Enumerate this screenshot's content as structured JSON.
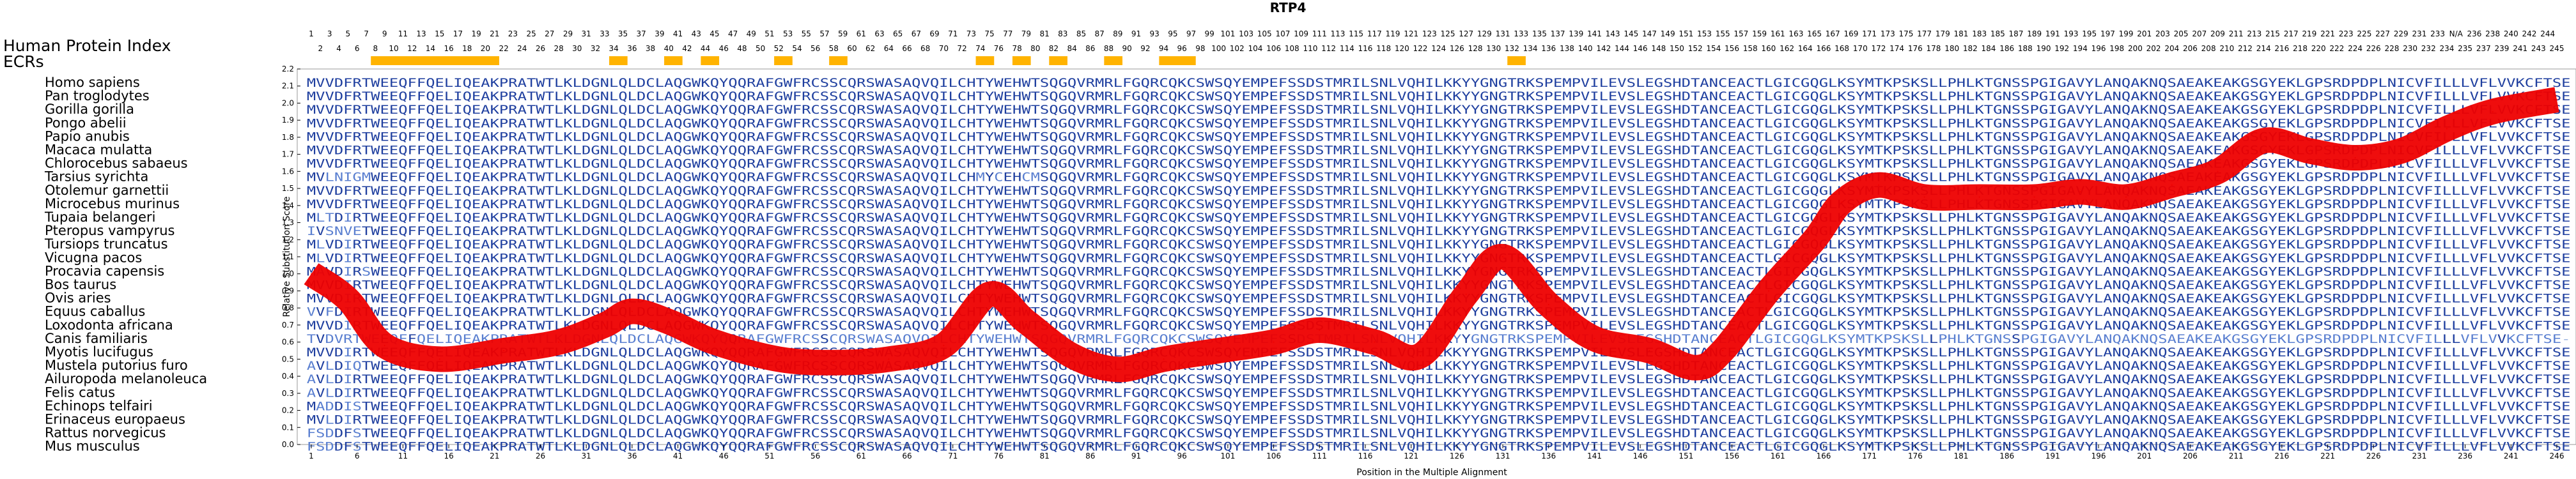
{
  "chart_data": {
    "type": "line",
    "title": "RTP4",
    "xlabel": "Position in the Multiple Alignment",
    "ylabel": "Relative Substitution Score",
    "ylim": [
      0.0,
      2.2
    ],
    "yticks": [
      "0.0",
      "0.1",
      "0.2",
      "0.3",
      "0.4",
      "0.5",
      "0.6",
      "0.7",
      "0.8",
      "0.9",
      "1.0",
      "1.1",
      "1.2",
      "1.3",
      "1.4",
      "1.5",
      "1.6",
      "1.7",
      "1.8",
      "1.9",
      "2.0",
      "2.1",
      "2.2"
    ],
    "xlim": [
      1,
      246
    ],
    "xticks": [
      "1",
      "6",
      "11",
      "16",
      "21",
      "26",
      "31",
      "36",
      "41",
      "46",
      "51",
      "56",
      "61",
      "66",
      "71",
      "76",
      "81",
      "86",
      "91",
      "96",
      "101",
      "106",
      "111",
      "116",
      "121",
      "126",
      "131",
      "136",
      "141",
      "146",
      "151",
      "156",
      "161",
      "166",
      "171",
      "176",
      "181",
      "186",
      "191",
      "196",
      "201",
      "206",
      "211",
      "216",
      "221",
      "226",
      "231",
      "236",
      "241",
      "246"
    ],
    "human_index_row1": [
      "1",
      "3",
      "5",
      "7",
      "9",
      "11",
      "13",
      "15",
      "17",
      "19",
      "21",
      "23",
      "25",
      "27",
      "29",
      "31",
      "33",
      "35",
      "37",
      "39",
      "41",
      "43",
      "45",
      "47",
      "49",
      "51",
      "53",
      "55",
      "57",
      "59",
      "61",
      "63",
      "65",
      "67",
      "69",
      "71",
      "73",
      "75",
      "77",
      "79",
      "81",
      "83",
      "85",
      "87",
      "89",
      "91",
      "93",
      "95",
      "97",
      "99",
      "101",
      "103",
      "105",
      "107",
      "109",
      "111",
      "113",
      "115",
      "117",
      "119",
      "121",
      "123",
      "125",
      "127",
      "129",
      "131",
      "133",
      "135",
      "137",
      "139",
      "141",
      "143",
      "145",
      "147",
      "149",
      "151",
      "153",
      "155",
      "157",
      "159",
      "161",
      "163",
      "165",
      "167",
      "169",
      "171",
      "173",
      "175",
      "177",
      "179",
      "181",
      "183",
      "185",
      "187",
      "189",
      "191",
      "193",
      "195",
      "197",
      "199",
      "201",
      "203",
      "205",
      "207",
      "209",
      "211",
      "213",
      "215",
      "217",
      "219",
      "221",
      "223",
      "225",
      "227",
      "229",
      "231",
      "233",
      "N/A",
      "236",
      "238",
      "240",
      "242",
      "244"
    ],
    "human_index_row2": [
      "2",
      "4",
      "6",
      "8",
      "10",
      "12",
      "14",
      "16",
      "18",
      "20",
      "22",
      "24",
      "26",
      "28",
      "30",
      "32",
      "34",
      "36",
      "38",
      "40",
      "42",
      "44",
      "46",
      "48",
      "50",
      "52",
      "54",
      "56",
      "58",
      "60",
      "62",
      "64",
      "66",
      "68",
      "70",
      "72",
      "74",
      "76",
      "78",
      "80",
      "82",
      "84",
      "86",
      "88",
      "90",
      "92",
      "94",
      "96",
      "98",
      "100",
      "102",
      "104",
      "106",
      "108",
      "110",
      "112",
      "114",
      "116",
      "118",
      "120",
      "122",
      "124",
      "126",
      "128",
      "130",
      "132",
      "134",
      "136",
      "138",
      "140",
      "142",
      "144",
      "146",
      "148",
      "150",
      "152",
      "154",
      "156",
      "158",
      "160",
      "162",
      "164",
      "166",
      "168",
      "170",
      "172",
      "174",
      "176",
      "178",
      "180",
      "182",
      "184",
      "186",
      "188",
      "190",
      "192",
      "194",
      "196",
      "198",
      "200",
      "202",
      "204",
      "206",
      "208",
      "210",
      "212",
      "214",
      "216",
      "218",
      "220",
      "222",
      "224",
      "226",
      "228",
      "230",
      "232",
      "234",
      "235",
      "237",
      "239",
      "241",
      "243",
      "245"
    ],
    "ecr_ranges": [
      [
        8,
        21
      ],
      [
        34,
        35
      ],
      [
        40,
        41
      ],
      [
        44,
        45
      ],
      [
        52,
        53
      ],
      [
        58,
        59
      ],
      [
        74,
        75
      ],
      [
        78,
        79
      ],
      [
        82,
        83
      ],
      [
        88,
        89
      ],
      [
        94,
        97
      ],
      [
        132,
        133
      ]
    ],
    "series": [
      {
        "x": [
          1,
          5,
          9,
          15,
          22,
          28,
          33,
          36,
          40,
          45,
          52,
          58,
          64,
          70,
          75,
          79,
          84,
          89,
          94,
          100,
          106,
          111,
          117,
          122,
          127,
          131,
          136,
          141,
          147,
          152,
          155,
          160,
          165,
          168,
          172,
          177,
          183,
          189,
          194,
          199,
          204,
          209,
          214,
          219,
          224,
          229,
          234,
          239,
          246
        ],
        "y": [
          1.0,
          0.85,
          0.58,
          0.5,
          0.55,
          0.6,
          0.7,
          0.78,
          0.72,
          0.6,
          0.5,
          0.48,
          0.5,
          0.58,
          0.88,
          0.72,
          0.52,
          0.44,
          0.5,
          0.55,
          0.6,
          0.67,
          0.6,
          0.52,
          0.88,
          1.1,
          0.82,
          0.62,
          0.55,
          0.45,
          0.55,
          0.9,
          1.2,
          1.42,
          1.52,
          1.45,
          1.45,
          1.45,
          1.48,
          1.45,
          1.52,
          1.6,
          1.78,
          1.72,
          1.68,
          1.72,
          1.85,
          1.95,
          2.02
        ]
      }
    ]
  },
  "legend": {
    "human_index_label": "Human Protein Index",
    "ecr_label": "ECRs"
  },
  "species": [
    "Homo sapiens",
    "Pan troglodytes",
    "Gorilla gorilla",
    "Pongo abelii",
    "Papio anubis",
    "Macaca mulatta",
    "Chlorocebus sabaeus",
    "Tarsius syrichta",
    "Otolemur garnettii",
    "Microcebus murinus",
    "Tupaia belangeri",
    "Pteropus vampyrus",
    "Tursiops truncatus",
    "Vicugna pacos",
    "Procavia capensis",
    "Bos taurus",
    "Ovis aries",
    "Equus caballus",
    "Loxodonta africana",
    "Canis familiaris",
    "Myotis lucifugus",
    "Mustela putorius furo",
    "Ailuropoda melanoleuca",
    "Felis catus",
    "Echinops telfairi",
    "Erinaceus europaeus",
    "Rattus norvegicus",
    "Mus musculus"
  ],
  "sequences": [
    "MVVDFRTWEEQFFQELIQEAKPRATWTLKLDGNLQLDCLAQGWKQYQQRAFGWFRCSSCQRSWASAQVQILCHTYWEHWTSQGQVRMRLFGQRCQKCSWSQYEMPEFSSDSTMRILSNLVQHILKKYYGNGTRKSPEMPVILEVSLEGSHDTANCEACTLGICGQGLKSYMTKPSKSLLPHLKTGNSSPGIGAVYLANQAKNQSAEAKEAKGSGYEKLGPSRDPDPLNICVFILLLVFLVVKCFTSE",
    "MVVDFRTWEEQFFQELIQEAKPRATWTLKLDGNLQLDCLAQGWKQYQQRAFGWFRCSSCQRSWASAQVQILCHTYWEHWTSQGQVRMRLFGQRCQKCSWSQYEMPEFSSDSTMRILSNLVQHILKKYYGNGTRKSPEMPVILEVSLEGSHDTANCEACTLGICGQGLKSYMTKPSKSLLPHLKTGNSSPGIGAVYLANQAKNQSAEAKEAKGSGYEKLGPSRDPDPLNICVFILLLVFLVVKCFTSE",
    "MVVDFRTWEEQFFQELIQEAKPRATWTLKLDGNLQLDCLAQGWKQYQQRAFGWFRCSSCQRSWASAQVQILCHTYWEHWTSQGQVRMRLFGQRCQKCSWSQYEMPEFSSDSTMRILSNLVQHILKKYYGNGTRKSPEMPVILEVSLEGSHDTANCEACTLGICGQGLKSYMTKPSKSLLPHLKTGNSSPGIGAVYLANQAKNQSAEAKEAKGSGYEKLGPSRDPDPLNICVFILLLVFLVVKCFTSE",
    "MVVDFRTWEEQFFQELIQEAKPRATWTLKLDGNLQLDCLAQGWKQYQQRAFGWFRCSSCQRSWASAQVQILCHTYWEHWTSQGQVRMRLFGQRCQKCSWSQYEMPEFSSDSTMRILSNLVQHILKKYYGNGTRKSPEMPVILEVSLEGSHDTANCEACTLGICGQGLKSYMTKPSKSLLPHLKTGNSSPGIGAVYLANQAKNQSAEAKEAKGSGYEKLGPSRDPDPLNICVFILLLVFLVVKCFTSE",
    "MVVDFRTWEEQFFQELIQEAKPRATWTLKLDGNLQLDCLAQGWKQYQQRAFGWFRCSSCQRSWASAQVQILCHTYWEHWTSQGQVRMRLFGQRCQKCSWSQYEMPEFSSDSTMRILSNLVQHILKKYYGNGTRKSPEMPVILEVSLEGSHDTANCEACTLGICGQGLKSYMTKPSKSLLPHLKTGNSSPGIGAVYLANQAKNQSAEAKEAKGSGYEKLGPSRDPDPLNICVFILLLVFLVVKCFTSE",
    "MVVDFRTWEEQFFQELIQEAKPRATWTLKLDGNLQLDCLAQGWKQYQQRAFGWFRCSSCQRSWASAQVQILCHTYWEHWTSQGQVRMRLFGQRCQKCSWSQYEMPEFSSDSTMRILSNLVQHILKKYYGNGTRKSPEMPVILEVSLEGSHDTANCEACTLGICGQGLKSYMTKPSKSLLPHLKTGNSSPGIGAVYLANQAKNQSAEAKEAKGSGYEKLGPSRDPDPLNICVFILLLVFLVVKCFTSE",
    "MVVDFRTWEEQFFQELIQEAKPRATWTLKLDGNLQLDCLAQGWKQYQQRAFGWFRCSSCQRSWASAQVQILCHTYWEHWTSQGQVRMRLFGQRCQKCSWSQYEMPEFSSDSTMRILSNLVQHILKKYYGNGTRKSPEMPVILEVSLEGSHDTANCEACTLGICGQGLKSYMTKPSKSLLPHLKTGNSSPGIGAVYLANQAKNQSAEAKEAKGSGYEKLGPSRDPDPLNICVFILLLVFLVVKCFTSE",
    "MVLNIGMWEEQFFQELIQEAKPRATWTLKLDGNLQLDCLAQGWKQYQQRAFGWFRCSSCQRSWASAQVQILCHMYCEHCMSQGQVRMRLFGQRCQKCSWSQYEMPEFSSDSTMRILSNLVQHILKKYYGNGTRKSPEMPVILEVSLEGSHDTANCEACTLGICGQGLKSYMTKPSKSLLPHLKTGNSSPGIGAVYLANQAKNQSAEAKEAKGSGYEKLGPSRDPDPLNICVFILLLVFLVVKCFTSE",
    "MVVDFRTWEEQFFQELIQEAKPRATWTLKLDGNLQLDCLAQGWKQYQQRAFGWFRCSSCQRSWASAQVQILCHTYWEHWTSQGQVRMRLFGQRCQKCSWSQYEMPEFSSDSTMRILSNLVQHILKKYYGNGTRKSPEMPVILEVSLEGSHDTANCEACTLGICGQGLKSYMTKPSKSLLPHLKTGNSSPGIGAVYLANQAKNQSAEAKEAKGSGYEKLGPSRDPDPLNICVFILLLVFLVVKCFTSE",
    "MVVDFRTWEEQFFQELIQEAKPRATWTLKLDGNLQLDCLAQGWKQYQQRAFGWFRCSSCQRSWASAQVQILCHTYWEHWTSQGQVRMRLFGQRCQKCSWSQYEMPEFSSDSTMRILSNLVQHILKKYYGNGTRKSPEMPVILEVSLEGSHDTANCEACTLGICGQGLKSYMTKPSKSLLPHLKTGNSSPGIGAVYLANQAKNQSAEAKEAKGSGYEKLGPSRDPDPLNICVFILLLVFLVVKCFTSE",
    "MLTDIRTWEEQFFQELIQEAKPRATWTLKLDGNLQLDCLAQGWKQYQQRAFGWFRCSSCQRSWASAQVQILCHTYWEHWTSQGQVRMRLFGQRCQKCSWSQYEMPEFSSDSTMRILSNLVQHILKKYYGNGTRKSPEMPVILEVSLEGSHDTANCEACTLGICGQGLKSYMTKPSKSLLPHLKTGNSSPGIGAVYLANQAKNQSAEAKEAKGSGYEKLGPSRDPDPLNICVFILLLVFLVVKCFTSE",
    "IVSNVETWEEQFFQELIQEAKPRATWTLKLDGNLQLDCLAQGWKQYQQRAFGWFRCSSCQRSWASAQVQILCHTYWEHWTSQGQVRMRLFGQRCQKCSWSQYEMPEFSSDSTMRILSNLVQHILKKYYGNGTRKSPEMPVILEVSLEGSHDTANCEACTLGICGQGLKSYMTKPSKSLLPHLKTGNSSPGIGAVYLANQAKNQSAEAKEAKGSGYEKLGPSRDPDPLNICVFILLLVFLVVKCFTSE",
    "MLVDIRTWEEQFFQELIQEAKPRATWTLKLDGNLQLDCLAQGWKQYQQRAFGWFRCSSCQRSWASAQVQILCHTYWEHWTSQGQVRMRLFGQRCQKCSWSQYEMPEFSSDSTMRILSNLVQHILKKYYGNGTRKSPEMPVILEVSLEGSHDTANCEACTLGICGQGLKSYMTKPSKSLLPHLKTGNSSPGIGAVYLANQAKNQSAEAKEAKGSGYEKLGPSRDPDPLNICVFILLLVFLVVKCFTSE",
    "MLVDIRTWEEQFFQELIQEAKPRATWTLKLDGNLQLDCLAQGWKQYQQRAFGWFRCSSCQRSWASAQVQILCHTYWEHWTSQGQVRMRLFGQRCQKCSWSQYEMPEFSSDSTMRILSNLVQHILKKYYGNGTRKSPEMPVILEVSLEGSHDTANCEACTLGICGQGLKSYMTKPSKSLLPHLKTGNSSPGIGAVYLANQAKNQSAEAKEAKGSGYEKLGPSRDPDPLNICVFILLLVFLVVKCFTSE",
    "MAVDIRSWEEQFFQELIQEAKPRATWTLKLDGNLQLDCLAQGWKQYQQRAFGWFRCSSCQRSWASAQVQILCHTYWEHWTSQGQVRMRLFGQRCQKCSWSQYEMPEFSSDSTMRILSNLVQHILKKYYGNGTRKSPEMPVILEVSLEGSHDTANCEACTLGICGQGLKSYMTKPSKSLLPHLKTGNSSPGIGAVYLANQAKNQSAEAKEAKGSGYEKLGPSRDPDPLNICVFILLLVFLVVKCFTSE",
    "MVVDIRTWEEQFFQELIQEAKPRATWTLKLDGNLQLDCLAQGWKQYQQRAFGWFRCSSCQRSWASAQVQILCHTYWEHWTSQGQVRMRLFGQRCQKCSWSQYEMPEFSSDSTMRILSNLVQHILKKYYGNGTRKSPEMPVILEVSLEGSHDTANCEACTLGICGQGLKSYMTKPSKSLLPHLKTGNSSPGIGAVYLANQAKNQSAEAKEAKGSGYEKLGPSRDPDPLNICVFILLLVFLVVKCFTSE",
    "MVVDIRTWEEQFFQELIQEAKPRATWTLKLDGNLQLDCLAQGWKQYQQRAFGWFRCSSCQRSWASAQVQILCHTYWEHWTSQGQVRMRLFGQRCQKCSWSQYEMPEFSSDSTMRILSNLVQHILKKYYGNGTRKSPEMPVILEVSLEGSHDTANCEACTLGICGQGLKSYMTKPSKSLLPHLKTGNSSPGIGAVYLANQAKNQSAEAKEAKGSGYEKLGPSRDPDPLNICVFILLLVFLVVKCFTSE",
    "VVFDIRTWEEQFFQELIQEAKPRATWTLKLDGNLQLDCLAQGWKQYQQRAFGWFRCSSCQRSWASAQVQILCHTYWEHWTSQGQVRMRLFGQRCQKCSWSQYEMPEFSSDSTMRILSNLVQHILKKYYGNGTRKSPEMPVILEVSLEGSHDTANCEACTLGICGQGLKSYMTKPSKSLLPHLKTGNSSPGIGAVYLANQAKNQSAEAKEAKGSGYEKLGPSRDPDPLNICVFILLLVFLVVKCFTSE",
    "MVVDIRTWEEQFFQELIQEAKPRATWTLKLDGNLQLDCLAQGWKQYQQRAFGWFRCSSCQRSWASAQVQILCHTYWEHWTSQGQVRMRLFGQRCQKCSWSQYEMPEFSSDSTMRILSNLVQHILKKYYGNGTRKSPEMPVILEVSLEGSHDTANCEACTLGICGQGLKSYMTKPSKSLLPHLKTGNSSPGIGAVYLANQAKNQSAEAKEAKGSGYEKLGPSRDPDPLNICVFILLLVFLVVKCFTSE",
    "TVDVRTWEEQFFQELIQEAKPRATWTLKLDGNLQLDCLAQGWKQYQQRAFGWFRCSSCQRSWASAQVQILCHTYWEHWTSQGQVRMRLFGQRCQKCSWSQYEMPEFSSDSTMRILSNLVQHILKKYYGNGTRKSPEMPVILEVSLEGSHDTANCEACTLGICGQGLKSYMTKPSKSLLPHLKTGNSSPGIGAVYLANQAKNQSAEAKEAKGSGYEKLGPSRDPDPLNICVFILLLVFLVVKCFTSE-",
    "MVVDIRTWEEQFFQELIQEAKPRATWTLKLDGNLQLDCLAQGWKQYQQRAFGWFRCSSCQRSWASAQVQILCHTYWEHWTSQGQVRMRLFGQRCQKCSWSQYEMPEFSSDSTMRILSNLVQHILKKYYGNGTRKSPEMPVILEVSLEGSHDTANCEACTLGICGQGLKSYMTKPSKSLLPHLKTGNSSPGIGAVYLANQAKNQSAEAKEAKGSGYEKLGPSRDPDPLNICVFILLLVFLVVKCFTSE",
    "AVLDIQTWEEQFFQELIQEAKPRATWTLKLDGNLQLDCLAQGWKQYQQRAFGWFRCSSCQRSWASAQVQILCHTYWEHWTSQGQVRMRLFGQRCQKCSWSQYEMPEFSSDSTMRILSNLVQHILKKYYGNGTRKSPEMPVILEVSLEGSHDTANCEACTLGICGQGLKSYMTKPSKSLLPHLKTGNSSPGIGAVYLANQAKNQSAEAKEAKGSGYEKLGPSRDPDPLNICVFILLLVFLVVKCFTSE",
    "AVLDIRTWEEQFFQELIQEAKPRATWTLKLDGNLQLDCLAQGWKQYQQRAFGWFRCSSCQRSWASAQVQILCHTYWEHWTSQGQVRMRLFGQRCQKCSWSQYEMPEFSSDSTMRILSNLVQHILKKYYGNGTRKSPEMPVILEVSLEGSHDTANCEACTLGICGQGLKSYMTKPSKSLLPHLKTGNSSPGIGAVYLANQAKNQSAEAKEAKGSGYEKLGPSRDPDPLNICVFILLLVFLVVKCFTSE",
    "AVLDIRTWEEQFFQELIQEAKPRATWTLKLDGNLQLDCLAQGWKQYQQRAFGWFRCSSCQRSWASAQVQILCHTYWEHWTSQGQVRMRLFGQRCQKCSWSQYEMPEFSSDSTMRILSNLVQHILKKYYGNGTRKSPEMPVILEVSLEGSHDTANCEACTLGICGQGLKSYMTKPSKSLLPHLKTGNSSPGIGAVYLANQAKNQSAEAKEAKGSGYEKLGPSRDPDPLNICVFILLLVFLVVKCFTSE",
    "MADDISTWEEQFFQELIQEAKPRATWTLKLDGNLQLDCLAQGWKQYQQRAFGWFRCSSCQRSWASAQVQILCHTYWEHWTSQGQVRMRLFGQRCQKCSWSQYEMPEFSSDSTMRILSNLVQHILKKYYGNGTRKSPEMPVILEVSLEGSHDTANCEACTLGICGQGLKSYMTKPSKSLLPHLKTGNSSPGIGAVYLANQAKNQSAEAKEAKGSGYEKLGPSRDPDPLNICVFILLLVFLVVKCFTSE",
    "MVLDIRTWEEQFFQELIQEAKPRATWTLKLDGNLQLDCLAQGWKQYQQRAFGWFRCSSCQRSWASAQVQILCHTYWEHWTSQGQVRMRLFGQRCQKCSWSQYEMPEFSSDSTMRILSNLVQHILKKYYGNGTRKSPEMPVILEVSLEGSHDTANCEACTLGICGQGLKSYMTKPSKSLLPHLKTGNSSPGIGAVYLANQAKNQSAEAKEAKGSGYEKLGPSRDPDPLNICVFILLLVFLVVKCFTSE",
    "FSDDFSTWEEQFFQELIQEAKPRATWTLKLDGNLQLDCLAQGWKQYQQRAFGWFRCSSCQRSWASAQVQILCHTYWEHWTSQGQVRMRLFGQRCQKCSWSQYEMPEFSSDSTMRILSNLVQHILKKYYGNGTRKSPEMPVILEVSLEGSHDTANCEACTLGICGQGLKSYMTKPSKSLLPHLKTGNSSPGIGAVYLANQAKNQSAEAKEAKGSGYEKLGPSRDPDPLNICVFILLLVFLVVKCFTSE",
    "FSDDFSTWEEQFFQELIQEAKPRATWTLKLDGNLQLDCLAQGWKQYQQRAFGWFRCSSCQRSWASAQVQILCHTYWEHWTSQGQVRMRLFGQRCQKCSWSQYEMPEFSSDSTMRILSNLVQHILKKYYGNGTRKSPEMPVILEVSLEGSHDTANCEACTLGICGQGLKSYMTKPSKSLLPHLKTGNSSPGIGAVYLANQAKNQSAEAKEAKGSGYEKLGPSRDPDPLNICVFILLLVFLVVKCFTSE"
  ],
  "colors": {
    "curve": "#ee0000",
    "ecr": "#ffb300",
    "residue_conserved": "#1f3f9f",
    "residue_similar": "#5a7fd0",
    "residue_variable": "#9db4e0"
  }
}
